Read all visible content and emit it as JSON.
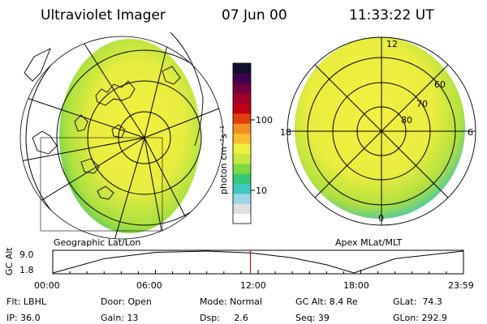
{
  "header": {
    "instrument": "Ultraviolet Imager",
    "date": "07 Jun 00",
    "time": "11:33:22 UT"
  },
  "left_panel": {
    "caption": "Geographic Lat/Lon"
  },
  "right_panel": {
    "caption": "Apex MLat/MLT",
    "mlt_labels": {
      "top": "12",
      "left": "18",
      "right": "6",
      "bottom": "0"
    },
    "lat_labels": [
      "60",
      "70",
      "80"
    ]
  },
  "colorbar": {
    "unit_label": "photon cm⁻²s⁻¹",
    "ticks": [
      "100",
      "10"
    ],
    "colors": [
      "#ffffff",
      "#e0e0e0",
      "#9ad8e8",
      "#40c8c0",
      "#38c878",
      "#80d840",
      "#c8e840",
      "#f0f040",
      "#f8c030",
      "#f09020",
      "#e04010",
      "#c00010",
      "#a00028",
      "#70003c",
      "#400050",
      "#101030"
    ]
  },
  "timeline": {
    "axis_label": "GC Alt",
    "y_ticks": [
      "9.0",
      "1.8"
    ],
    "x_ticks": [
      "00:00",
      "06:00",
      "12:00",
      "18:00",
      "23:59"
    ],
    "altitude_series": [
      {
        "t": 0,
        "alt": 1.8
      },
      {
        "t": 3,
        "alt": 6.5
      },
      {
        "t": 6,
        "alt": 8.6
      },
      {
        "t": 9,
        "alt": 9.0
      },
      {
        "t": 11.55,
        "alt": 8.4
      },
      {
        "t": 14,
        "alt": 6.8
      },
      {
        "t": 16,
        "alt": 4.5
      },
      {
        "t": 17.6,
        "alt": 1.8
      },
      {
        "t": 20,
        "alt": 6.5
      },
      {
        "t": 23.98,
        "alt": 9.0
      }
    ],
    "marker_hour": 11.55,
    "marker_color": "#d00000"
  },
  "footer": {
    "flt": "Flt: LBHL",
    "ip": "IP: 36.0",
    "door": "Door: Open",
    "gain": "Gain: 13",
    "mode": "Mode: Normal",
    "dsp": "Dsp:     2.6",
    "gcalt": "GC Alt: 8.4 Re",
    "seq": "Seq: 39",
    "glat": "GLat:  74.3",
    "glon": "GLon: 292.9"
  }
}
